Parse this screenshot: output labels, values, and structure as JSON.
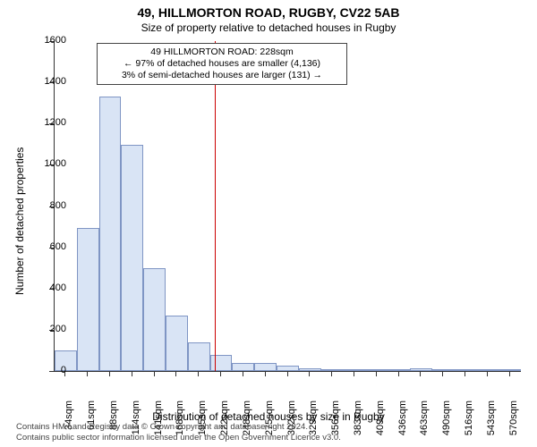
{
  "title": "49, HILLMORTON ROAD, RUGBY, CV22 5AB",
  "subtitle": "Size of property relative to detached houses in Rugby",
  "xaxis_label": "Distribution of detached houses by size in Rugby",
  "yaxis_label": "Number of detached properties",
  "attribution_line1": "Contains HM Land Registry data © Crown copyright and database right 2024.",
  "attribution_line2": "Contains public sector information licensed under the Open Government Licence v3.0.",
  "chart": {
    "type": "histogram",
    "background_color": "#ffffff",
    "axis_color": "#333333",
    "bar_fill": "#d9e4f5",
    "bar_stroke": "#7f95c4",
    "highlight_line_color": "#cc0000",
    "text_color": "#000000",
    "font_family": "Arial, sans-serif",
    "title_fontsize": 14,
    "subtitle_fontsize": 12,
    "axis_label_fontsize": 12,
    "tick_fontsize": 11,
    "annotation_fontsize": 10.5,
    "attribution_fontsize": 9.5,
    "ylim": [
      0,
      1600
    ],
    "yticks": [
      0,
      200,
      400,
      600,
      800,
      1000,
      1200,
      1400,
      1600
    ],
    "xtick_labels": [
      "34sqm",
      "61sqm",
      "88sqm",
      "114sqm",
      "141sqm",
      "168sqm",
      "195sqm",
      "222sqm",
      "248sqm",
      "275sqm",
      "302sqm",
      "329sqm",
      "356sqm",
      "383sqm",
      "409sqm",
      "436sqm",
      "463sqm",
      "490sqm",
      "516sqm",
      "543sqm",
      "570sqm"
    ],
    "bin_labels": [
      "34",
      "61",
      "88",
      "114",
      "141",
      "168",
      "195",
      "222",
      "248",
      "275",
      "302",
      "329",
      "356",
      "383",
      "409",
      "436",
      "463",
      "490",
      "516",
      "543",
      "570"
    ],
    "values": [
      100,
      695,
      1330,
      1095,
      500,
      270,
      140,
      80,
      40,
      40,
      25,
      12,
      10,
      10,
      8,
      6,
      12,
      4,
      3,
      2,
      2
    ],
    "highlight": {
      "value_sqm": 228,
      "bin_index_after": 7,
      "lines": [
        "49 HILLMORTON ROAD: 228sqm",
        "← 97% of detached houses are smaller (4,136)",
        "3% of semi-detached houses are larger (131) →"
      ]
    }
  }
}
